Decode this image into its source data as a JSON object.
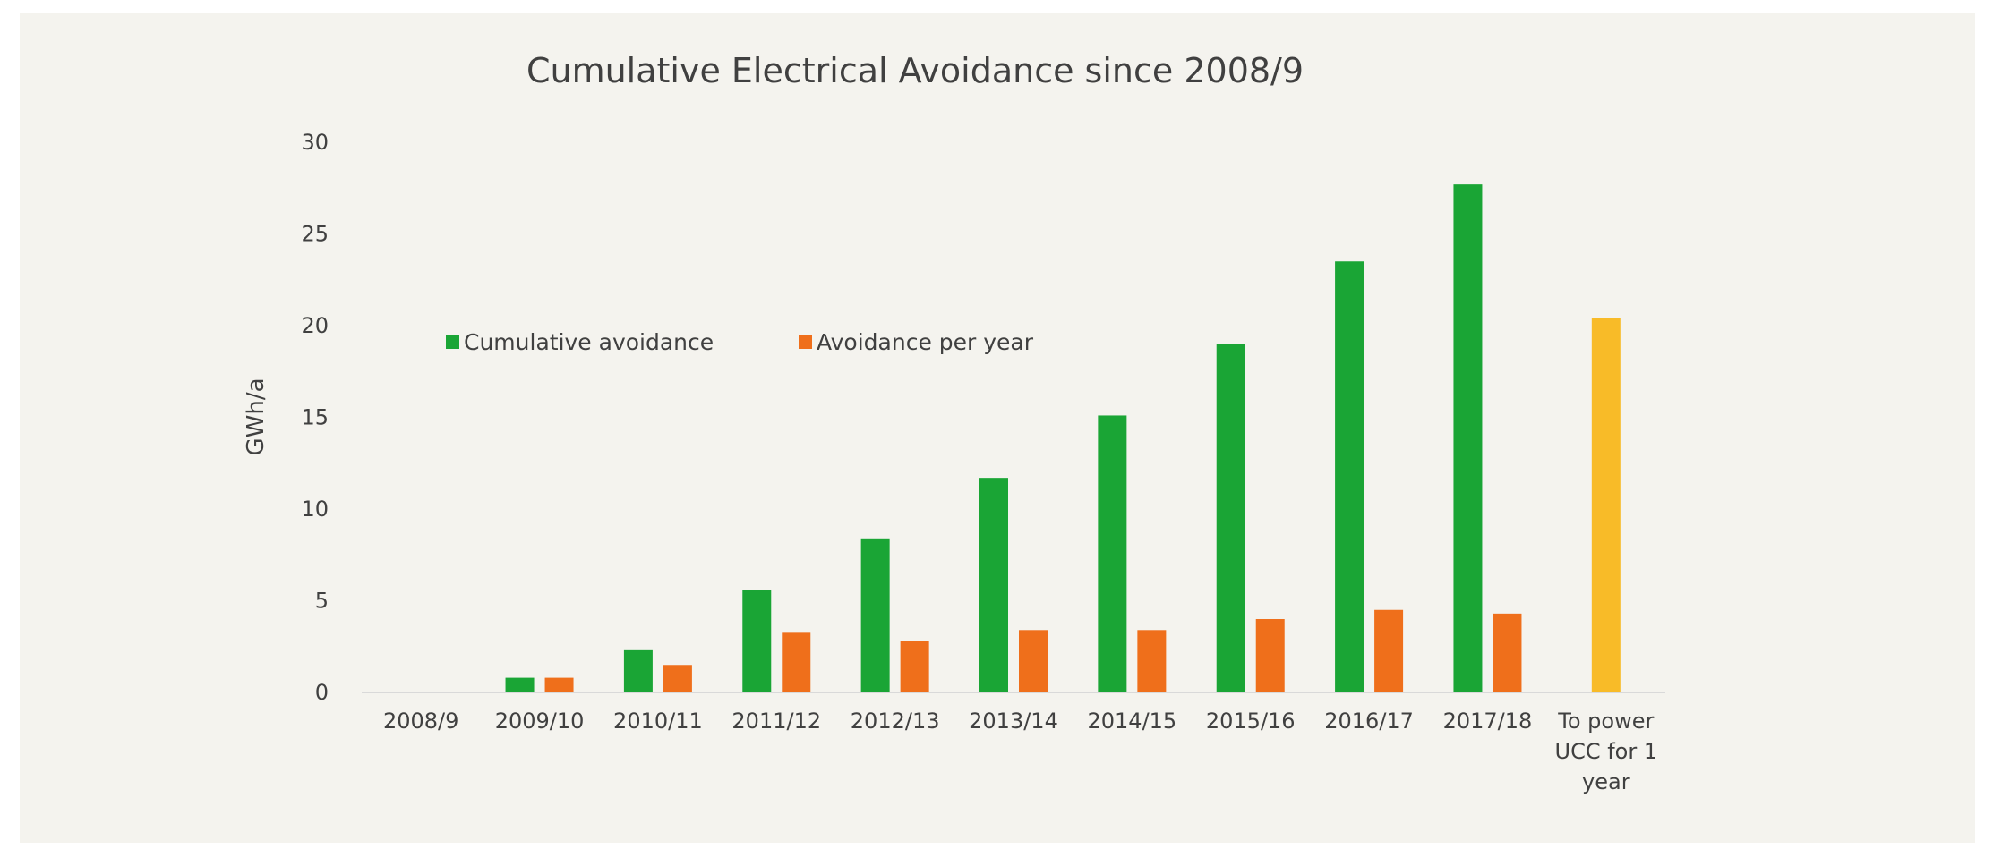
{
  "chart_data": {
    "type": "bar",
    "title": "Cumulative Electrical Avoidance since 2008/9",
    "xlabel": "",
    "ylabel": "GWh/a",
    "ylim": [
      0,
      30
    ],
    "yticks": [
      0,
      5,
      10,
      15,
      20,
      25,
      30
    ],
    "grid": false,
    "legend": "inside-top-left",
    "categories": [
      [
        "2008/9"
      ],
      [
        "2009/10"
      ],
      [
        "2010/11"
      ],
      [
        "2011/12"
      ],
      [
        "2012/13"
      ],
      [
        "2013/14"
      ],
      [
        "2014/15"
      ],
      [
        "2015/16"
      ],
      [
        "2016/17"
      ],
      [
        "2017/18"
      ],
      [
        "To power",
        "UCC for 1",
        "year"
      ]
    ],
    "series": [
      {
        "name": "Cumulative avoidance",
        "color": "#1aa535",
        "values": [
          0,
          0.8,
          2.3,
          5.6,
          8.4,
          11.7,
          15.1,
          19.0,
          23.5,
          27.7,
          null
        ]
      },
      {
        "name": "Avoidance per year",
        "color": "#ef6f1b",
        "values": [
          0,
          0.8,
          1.5,
          3.3,
          2.8,
          3.4,
          3.4,
          4.0,
          4.5,
          4.3,
          null
        ]
      }
    ],
    "reference_bar": {
      "category_index": 10,
      "value": 20.4,
      "color": "#f8bb28"
    }
  }
}
